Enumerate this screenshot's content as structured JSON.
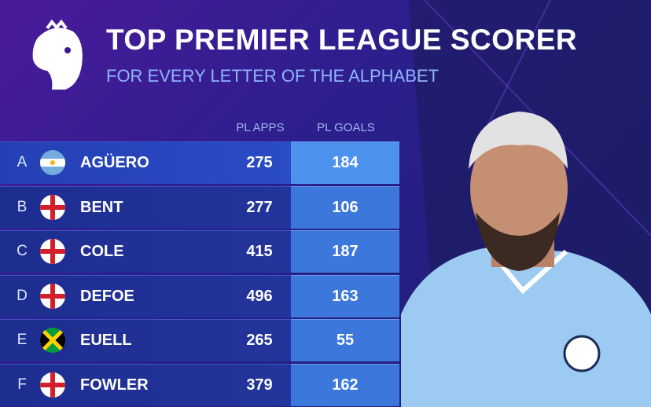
{
  "header": {
    "title": "TOP PREMIER LEAGUE SCORER",
    "subtitle": "FOR EVERY LETTER OF THE ALPHABET"
  },
  "table": {
    "columns": [
      "PL APPS",
      "PL GOALS"
    ],
    "rows": [
      [
        "A",
        "AGÜERO",
        275,
        184
      ],
      [
        "B",
        "BENT",
        277,
        106
      ],
      [
        "C",
        "COLE",
        415,
        187
      ],
      [
        "D",
        "DEFOE",
        496,
        163
      ],
      [
        "E",
        "EUELL",
        265,
        55
      ],
      [
        "F",
        "FOWLER",
        379,
        162
      ]
    ]
  }
}
